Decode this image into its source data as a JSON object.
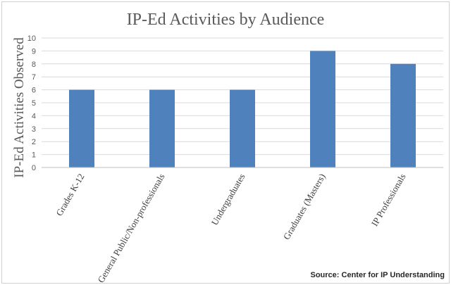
{
  "chart_data": {
    "type": "bar",
    "title": "IP-Ed Activities by Audience",
    "ylabel": "IP-Ed Activities Observed",
    "xlabel": "",
    "categories": [
      "Grades K-12",
      "General Public/Non-professionals",
      "Undergraduates",
      "Graduates (Masters)",
      "IP Professionals"
    ],
    "values": [
      6,
      6,
      6,
      9,
      8
    ],
    "ylim": [
      0,
      10
    ],
    "yticks": [
      "0",
      "1",
      "2",
      "3",
      "4",
      "5",
      "6",
      "7",
      "8",
      "9",
      "10"
    ],
    "grid": true,
    "legend": "none",
    "bar_color": "#4f81bd",
    "grid_color": "#d9d9d9"
  },
  "source": "Source: Center for IP Understanding"
}
